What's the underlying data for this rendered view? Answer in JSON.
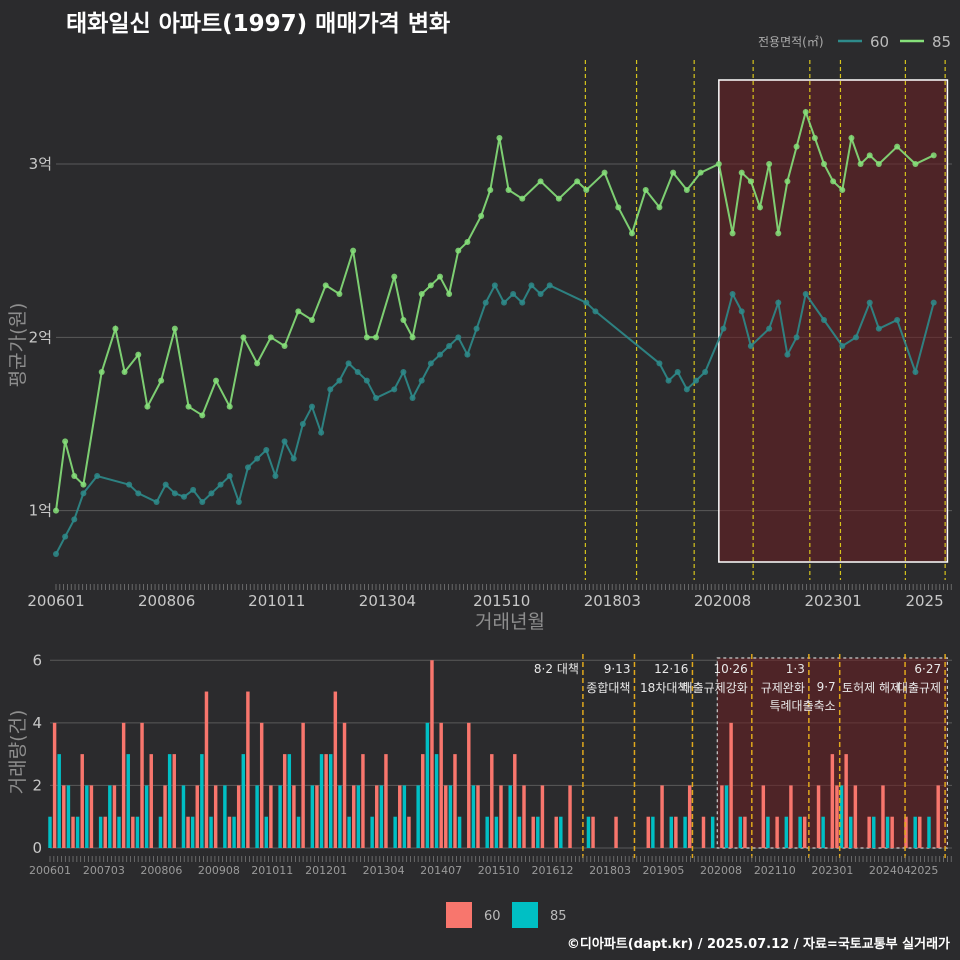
{
  "title": "태화일신 아파트(1997) 매매가격 변화",
  "credit": "©디아파트(dapt.kr) / 2025.07.12 / 자료=국토교통부 실거래가",
  "colors": {
    "bg": "#2b2b2d",
    "grid": "#5a5a5a",
    "line60": "#2e8b8b",
    "line85": "#86e07a",
    "bar60": "#f8766d",
    "bar85": "#00bfc4",
    "policy": "#d6c41c",
    "highlight": "#6b1f22"
  },
  "chart_data": [
    {
      "type": "line",
      "name": "price",
      "title": "태화일신 아파트(1997) 매매가격 변화",
      "xlabel": "거래년월",
      "ylabel": "평균가(원)",
      "xlim": [
        2006.0,
        2025.6
      ],
      "ylim": [
        0.6,
        3.6
      ],
      "y_ticks": [
        1,
        2,
        3
      ],
      "y_tick_labels": [
        "1억",
        "2억",
        "3억"
      ],
      "x_ticks": [
        2006.0,
        2008.42,
        2010.83,
        2013.25,
        2015.75,
        2018.17,
        2020.58,
        2023.0,
        2025.0
      ],
      "x_tick_labels": [
        "200601",
        "200806",
        "201011",
        "201304",
        "201510",
        "201803",
        "202008",
        "202301",
        "2025"
      ],
      "legend_title": "전용면적(㎡)",
      "legend": [
        "60",
        "85"
      ],
      "highlight_range": [
        2020.5,
        2025.5
      ],
      "policy_lines": [
        2017.58,
        2018.7,
        2019.96,
        2021.25,
        2022.49,
        2023.16,
        2024.58,
        2025.45
      ],
      "series": [
        {
          "name": "60",
          "x": [
            2006.0,
            2006.2,
            2006.4,
            2006.6,
            2006.9,
            2007.6,
            2007.8,
            2008.2,
            2008.4,
            2008.6,
            2008.8,
            2009.0,
            2009.2,
            2009.4,
            2009.6,
            2009.8,
            2010.0,
            2010.2,
            2010.4,
            2010.6,
            2010.8,
            2011.0,
            2011.2,
            2011.4,
            2011.6,
            2011.8,
            2012.0,
            2012.2,
            2012.4,
            2012.6,
            2012.8,
            2013.0,
            2013.4,
            2013.6,
            2013.8,
            2014.0,
            2014.2,
            2014.4,
            2014.6,
            2014.8,
            2015.0,
            2015.2,
            2015.4,
            2015.6,
            2015.8,
            2016.0,
            2016.2,
            2016.4,
            2016.6,
            2016.8,
            2017.6,
            2017.8,
            2019.2,
            2019.4,
            2019.6,
            2019.8,
            2020.0,
            2020.2,
            2020.6,
            2020.8,
            2021.0,
            2021.2,
            2021.6,
            2021.8,
            2022.0,
            2022.2,
            2022.4,
            2022.8,
            2023.2,
            2023.5,
            2023.8,
            2024.0,
            2024.4,
            2024.8,
            2025.2
          ],
          "y": [
            0.75,
            0.85,
            0.95,
            1.1,
            1.2,
            1.15,
            1.1,
            1.05,
            1.15,
            1.1,
            1.08,
            1.12,
            1.05,
            1.1,
            1.15,
            1.2,
            1.05,
            1.25,
            1.3,
            1.35,
            1.2,
            1.4,
            1.3,
            1.5,
            1.6,
            1.45,
            1.7,
            1.75,
            1.85,
            1.8,
            1.75,
            1.65,
            1.7,
            1.8,
            1.65,
            1.75,
            1.85,
            1.9,
            1.95,
            2.0,
            1.9,
            2.05,
            2.2,
            2.3,
            2.2,
            2.25,
            2.2,
            2.3,
            2.25,
            2.3,
            2.2,
            2.15,
            1.85,
            1.75,
            1.8,
            1.7,
            1.75,
            1.8,
            2.05,
            2.25,
            2.15,
            1.95,
            2.05,
            2.2,
            1.9,
            2.0,
            2.25,
            2.1,
            1.95,
            2.0,
            2.2,
            2.05,
            2.1,
            1.8,
            2.2
          ]
        },
        {
          "name": "85",
          "x": [
            2006.0,
            2006.2,
            2006.4,
            2006.6,
            2007.0,
            2007.3,
            2007.5,
            2007.8,
            2008.0,
            2008.3,
            2008.6,
            2008.9,
            2009.2,
            2009.5,
            2009.8,
            2010.1,
            2010.4,
            2010.7,
            2011.0,
            2011.3,
            2011.6,
            2011.9,
            2012.2,
            2012.5,
            2012.8,
            2013.0,
            2013.4,
            2013.6,
            2013.8,
            2014.0,
            2014.2,
            2014.4,
            2014.6,
            2014.8,
            2015.0,
            2015.3,
            2015.5,
            2015.7,
            2015.9,
            2016.2,
            2016.6,
            2017.0,
            2017.4,
            2017.6,
            2018.0,
            2018.3,
            2018.6,
            2018.9,
            2019.2,
            2019.5,
            2019.8,
            2020.1,
            2020.5,
            2020.8,
            2021.0,
            2021.2,
            2021.4,
            2021.6,
            2021.8,
            2022.0,
            2022.2,
            2022.4,
            2022.6,
            2022.8,
            2023.0,
            2023.2,
            2023.4,
            2023.6,
            2023.8,
            2024.0,
            2024.4,
            2024.8,
            2025.2
          ],
          "y": [
            1.0,
            1.4,
            1.2,
            1.15,
            1.8,
            2.05,
            1.8,
            1.9,
            1.6,
            1.75,
            2.05,
            1.6,
            1.55,
            1.75,
            1.6,
            2.0,
            1.85,
            2.0,
            1.95,
            2.15,
            2.1,
            2.3,
            2.25,
            2.5,
            2.0,
            2.0,
            2.35,
            2.1,
            2.0,
            2.25,
            2.3,
            2.35,
            2.25,
            2.5,
            2.55,
            2.7,
            2.85,
            3.15,
            2.85,
            2.8,
            2.9,
            2.8,
            2.9,
            2.85,
            2.95,
            2.75,
            2.6,
            2.85,
            2.75,
            2.95,
            2.85,
            2.95,
            3.0,
            2.6,
            2.95,
            2.9,
            2.75,
            3.0,
            2.6,
            2.9,
            3.1,
            3.3,
            3.15,
            3.0,
            2.9,
            2.85,
            3.15,
            3.0,
            3.05,
            3.0,
            3.1,
            3.0,
            3.05
          ]
        }
      ]
    },
    {
      "type": "bar",
      "name": "volume",
      "ylabel": "거래량(건)",
      "xlim": [
        2006.0,
        2025.6
      ],
      "ylim": [
        0,
        6.2
      ],
      "y_ticks": [
        0,
        2,
        4,
        6
      ],
      "y_tick_labels": [
        "0",
        "2",
        "4",
        "6"
      ],
      "x_ticks": [
        2006.0,
        2007.17,
        2008.42,
        2009.67,
        2010.83,
        2012.0,
        2013.25,
        2014.5,
        2015.75,
        2016.92,
        2018.17,
        2019.33,
        2020.58,
        2021.75,
        2023.0,
        2024.25,
        2025.0
      ],
      "x_tick_labels": [
        "200601",
        "200703",
        "200806",
        "200908",
        "201011",
        "201201",
        "201304",
        "201407",
        "201510",
        "201612",
        "201803",
        "201905",
        "202008",
        "202110",
        "202301",
        "202404",
        "2025"
      ],
      "legend": [
        "60",
        "85"
      ],
      "highlight_range": [
        2020.5,
        2025.5
      ],
      "policy_lines": [
        2017.58,
        2018.7,
        2019.96,
        2021.25,
        2022.49,
        2023.16,
        2024.58,
        2025.45
      ],
      "policy_labels": [
        {
          "x": 2017.58,
          "line1": "8·2 대책",
          "line2": ""
        },
        {
          "x": 2018.7,
          "line1": "9·13",
          "line2": "종합대책"
        },
        {
          "x": 2019.96,
          "line1": "12·16",
          "line2": "18차대책"
        },
        {
          "x": 2021.25,
          "line1": "10·26",
          "line2": "대출규제강화"
        },
        {
          "x": 2022.49,
          "line1": "1·3",
          "line2": "규제완화"
        },
        {
          "x": 2023.16,
          "line1": "9·7",
          "line2": "특례대출축소"
        },
        {
          "x": 2024.58,
          "line1": "",
          "line2": "토허제 해제"
        },
        {
          "x": 2025.45,
          "line1": "6·27",
          "line2": "대출규제"
        }
      ],
      "series": [
        {
          "name": "60",
          "x": [
            2006.1,
            2006.3,
            2006.5,
            2006.7,
            2006.9,
            2007.2,
            2007.4,
            2007.6,
            2007.8,
            2008.0,
            2008.2,
            2008.5,
            2008.7,
            2009.0,
            2009.2,
            2009.4,
            2009.6,
            2009.9,
            2010.1,
            2010.3,
            2010.6,
            2010.8,
            2011.1,
            2011.3,
            2011.5,
            2011.8,
            2012.0,
            2012.2,
            2012.4,
            2012.6,
            2012.8,
            2013.1,
            2013.3,
            2013.6,
            2013.8,
            2014.1,
            2014.3,
            2014.5,
            2014.6,
            2014.8,
            2015.1,
            2015.3,
            2015.6,
            2015.8,
            2016.1,
            2016.3,
            2016.5,
            2016.7,
            2017.0,
            2017.3,
            2017.8,
            2018.3,
            2019.0,
            2019.3,
            2019.6,
            2019.9,
            2020.2,
            2020.6,
            2020.8,
            2021.1,
            2021.5,
            2021.8,
            2022.1,
            2022.4,
            2022.7,
            2023.0,
            2023.1,
            2023.3,
            2023.5,
            2023.8,
            2024.1,
            2024.3,
            2024.6,
            2024.9,
            2025.3
          ],
          "y": [
            4,
            2,
            1,
            3,
            2,
            1,
            2,
            4,
            1,
            4,
            3,
            2,
            3,
            1,
            2,
            5,
            2,
            1,
            2,
            5,
            4,
            2,
            3,
            2,
            4,
            2,
            3,
            5,
            4,
            2,
            3,
            2,
            3,
            2,
            1,
            3,
            6,
            4,
            2,
            3,
            4,
            2,
            3,
            2,
            3,
            2,
            1,
            2,
            1,
            2,
            1,
            1,
            1,
            2,
            1,
            2,
            1,
            2,
            4,
            1,
            2,
            1,
            2,
            1,
            2,
            3,
            2,
            3,
            2,
            1,
            2,
            1,
            1,
            1,
            2
          ]
        },
        {
          "name": "85",
          "x": [
            2006.0,
            2006.2,
            2006.4,
            2006.6,
            2006.8,
            2007.1,
            2007.3,
            2007.5,
            2007.7,
            2007.9,
            2008.1,
            2008.4,
            2008.6,
            2008.9,
            2009.1,
            2009.3,
            2009.5,
            2009.8,
            2010.0,
            2010.2,
            2010.5,
            2010.7,
            2011.0,
            2011.2,
            2011.4,
            2011.7,
            2011.9,
            2012.1,
            2012.3,
            2012.5,
            2012.7,
            2013.0,
            2013.2,
            2013.5,
            2013.7,
            2014.0,
            2014.2,
            2014.4,
            2014.7,
            2014.9,
            2015.2,
            2015.5,
            2015.7,
            2016.0,
            2016.2,
            2016.6,
            2017.1,
            2017.7,
            2019.1,
            2019.5,
            2019.8,
            2020.4,
            2020.7,
            2021.0,
            2021.6,
            2022.0,
            2022.3,
            2022.8,
            2023.2,
            2023.4,
            2023.9,
            2024.2,
            2024.8,
            2025.1
          ],
          "y": [
            1,
            3,
            2,
            1,
            2,
            1,
            2,
            1,
            3,
            1,
            2,
            1,
            3,
            2,
            1,
            3,
            1,
            2,
            1,
            3,
            2,
            1,
            2,
            3,
            1,
            2,
            3,
            3,
            2,
            1,
            2,
            1,
            2,
            1,
            2,
            2,
            4,
            3,
            2,
            1,
            2,
            1,
            1,
            2,
            1,
            1,
            1,
            1,
            1,
            1,
            1,
            1,
            2,
            1,
            1,
            1,
            1,
            1,
            2,
            1,
            1,
            1,
            1,
            1
          ]
        }
      ]
    }
  ]
}
